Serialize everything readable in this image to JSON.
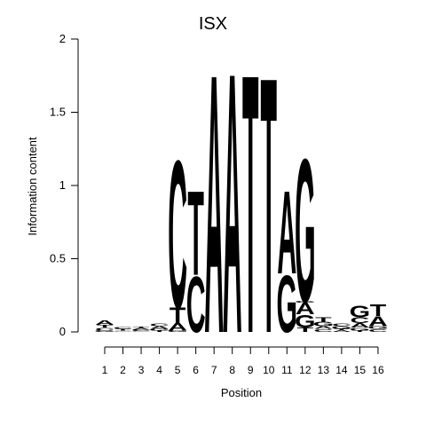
{
  "chart_data": {
    "type": "sequence-logo",
    "title": "ISX",
    "xlabel": "Position",
    "ylabel": "Information content",
    "ylim": [
      0,
      2
    ],
    "yticks": [
      {
        "value": 0,
        "label": "0"
      },
      {
        "value": 0.5,
        "label": "0.5"
      },
      {
        "value": 1,
        "label": "1"
      },
      {
        "value": 1.5,
        "label": "1.5"
      },
      {
        "value": 2,
        "label": "2"
      }
    ],
    "positions": [
      "1",
      "2",
      "3",
      "4",
      "5",
      "6",
      "7",
      "8",
      "9",
      "10",
      "11",
      "12",
      "13",
      "14",
      "15",
      "16"
    ],
    "colors": {
      "A": "#00ee00",
      "C": "#0000ee",
      "G": "#ffa500",
      "T": "#ff0000"
    },
    "stacks": [
      [
        {
          "base": "G",
          "height": 0.01
        },
        {
          "base": "C",
          "height": 0.02
        },
        {
          "base": "T",
          "height": 0.02
        },
        {
          "base": "A",
          "height": 0.03
        }
      ],
      [
        {
          "base": "G",
          "height": 0.005
        },
        {
          "base": "A",
          "height": 0.005
        },
        {
          "base": "T",
          "height": 0.01
        },
        {
          "base": "C",
          "height": 0.01
        }
      ],
      [
        {
          "base": "G",
          "height": 0.005
        },
        {
          "base": "C",
          "height": 0.01
        },
        {
          "base": "A",
          "height": 0.01
        },
        {
          "base": "T",
          "height": 0.01
        }
      ],
      [
        {
          "base": "T",
          "height": 0.01
        },
        {
          "base": "G",
          "height": 0.01
        },
        {
          "base": "A",
          "height": 0.02
        },
        {
          "base": "C",
          "height": 0.02
        }
      ],
      [
        {
          "base": "G",
          "height": 0.01
        },
        {
          "base": "A",
          "height": 0.05
        },
        {
          "base": "T",
          "height": 0.11
        },
        {
          "base": "C",
          "height": 1.03
        }
      ],
      [
        {
          "base": "C",
          "height": 0.39
        },
        {
          "base": "T",
          "height": 0.59
        }
      ],
      [
        {
          "base": "A",
          "height": 1.81
        }
      ],
      [
        {
          "base": "A",
          "height": 1.82
        }
      ],
      [
        {
          "base": "T",
          "height": 1.81
        }
      ],
      [
        {
          "base": "T",
          "height": 1.79
        }
      ],
      [
        {
          "base": "G",
          "height": 0.4
        },
        {
          "base": "A",
          "height": 0.58
        }
      ],
      [
        {
          "base": "T",
          "height": 0.03
        },
        {
          "base": "G",
          "height": 0.09
        },
        {
          "base": "A",
          "height": 0.08
        },
        {
          "base": "G",
          "height": 0.01
        },
        {
          "base": "G",
          "height": 1.0
        }
      ],
      [
        {
          "base": "C",
          "height": 0.02
        },
        {
          "base": "A",
          "height": 0.02
        },
        {
          "base": "G",
          "height": 0.03
        },
        {
          "base": "T",
          "height": 0.03
        }
      ],
      [
        {
          "base": "A",
          "height": 0.01
        },
        {
          "base": "T",
          "height": 0.01
        },
        {
          "base": "G",
          "height": 0.02
        },
        {
          "base": "C",
          "height": 0.02
        }
      ],
      [
        {
          "base": "T",
          "height": 0.01
        },
        {
          "base": "G",
          "height": 0.02
        },
        {
          "base": "A",
          "height": 0.03
        },
        {
          "base": "C",
          "height": 0.04
        },
        {
          "base": "G",
          "height": 0.08
        }
      ],
      [
        {
          "base": "C",
          "height": 0.02
        },
        {
          "base": "G",
          "height": 0.02
        },
        {
          "base": "A",
          "height": 0.07
        },
        {
          "base": "T",
          "height": 0.08
        }
      ]
    ]
  }
}
